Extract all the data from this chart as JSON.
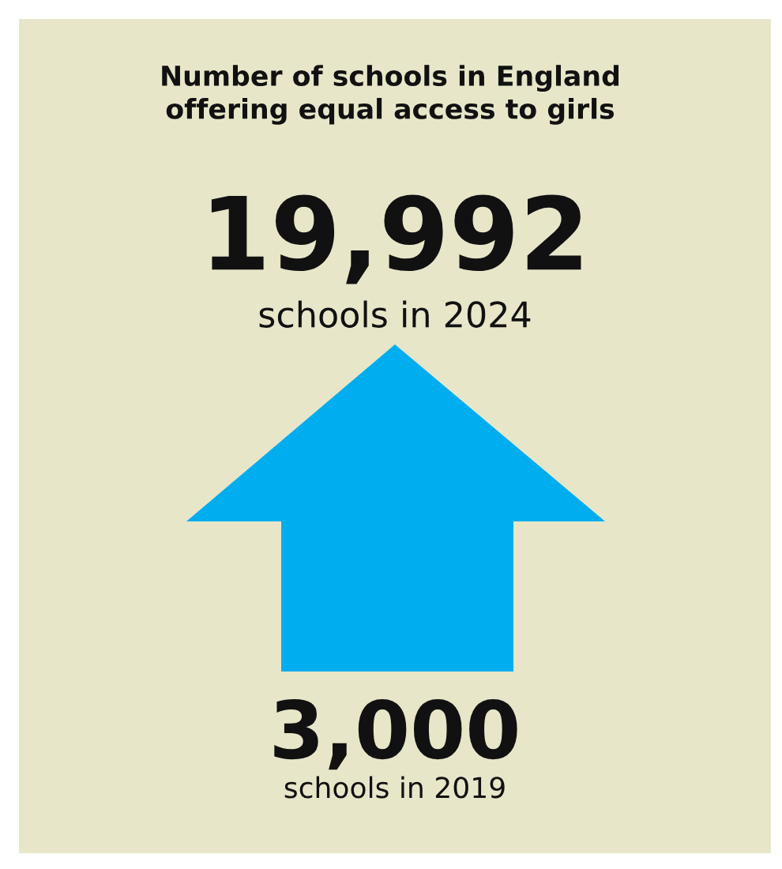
{
  "chart_data": {
    "type": "other",
    "title": "Number of schools in England\noffering equal access to girls",
    "categories": [
      "schools in 2019",
      "schools in 2024"
    ],
    "values": [
      3000,
      19992
    ],
    "value_labels": [
      "3,000",
      "19,992"
    ],
    "color": "#00aeef"
  }
}
